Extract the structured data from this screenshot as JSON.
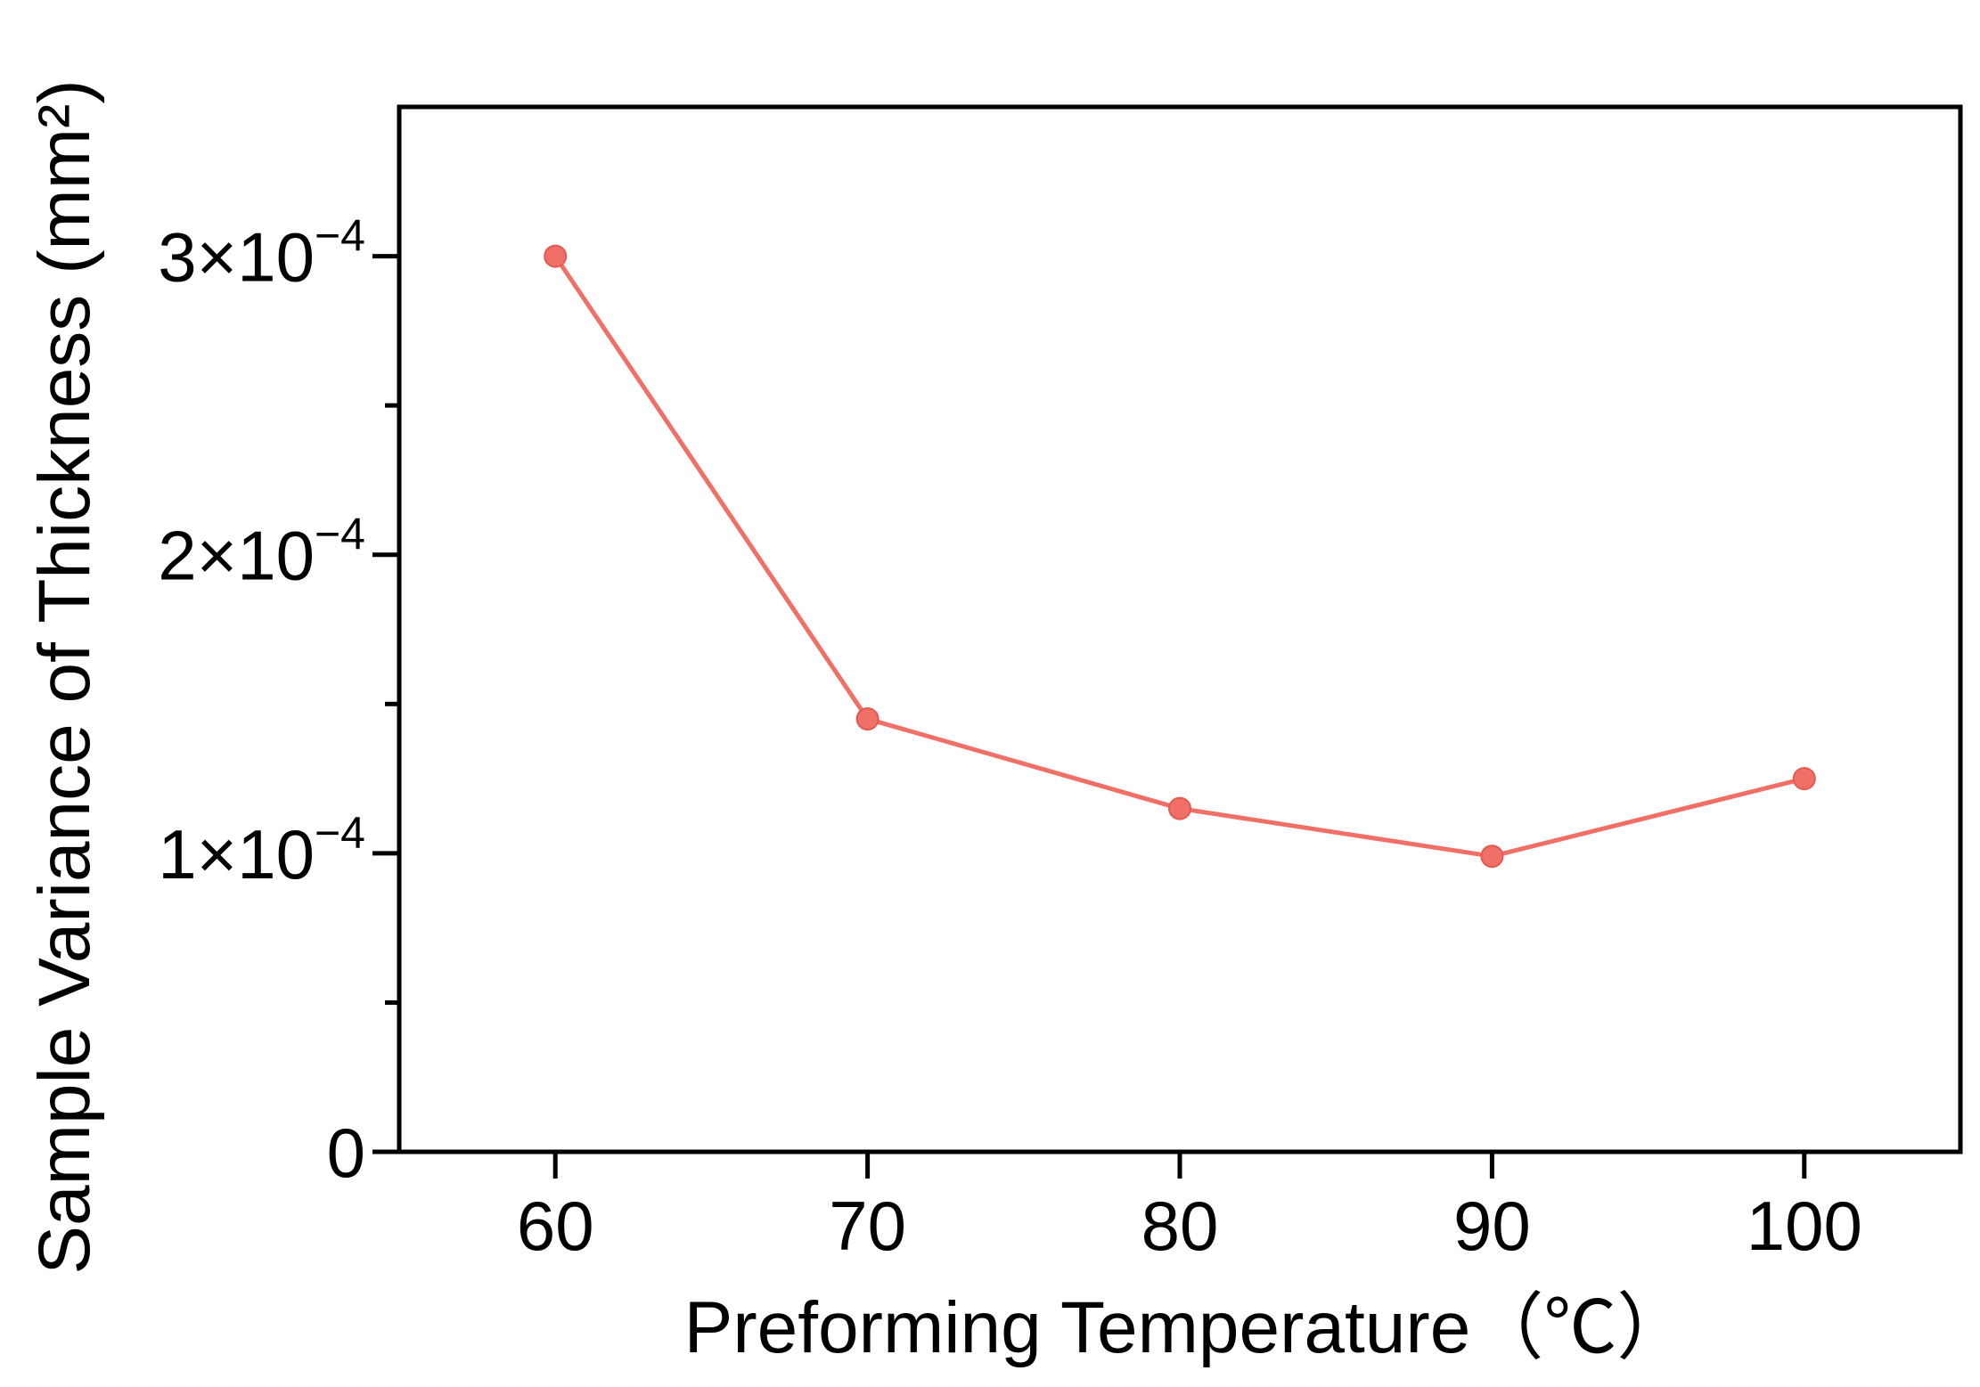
{
  "chart_data": {
    "type": "line",
    "xlabel": "Preforming Temperature（℃）",
    "ylabel": "Sample Variance of Thickness  (mm²)",
    "xlim": [
      55,
      105
    ],
    "ylim": [
      0,
      0.00035
    ],
    "x_ticks": [
      60,
      70,
      80,
      90,
      100
    ],
    "y_ticks": [
      {
        "value": 0,
        "mantissa": "0",
        "times": "",
        "exponent": ""
      },
      {
        "value": 0.0001,
        "mantissa": "1",
        "times": "×10",
        "exponent": "−4"
      },
      {
        "value": 0.0002,
        "mantissa": "2",
        "times": "×10",
        "exponent": "−4"
      },
      {
        "value": 0.0003,
        "mantissa": "3",
        "times": "×10",
        "exponent": "−4"
      }
    ],
    "y_minor_ticks": [
      5e-05,
      0.00015,
      0.00025
    ],
    "grid": false,
    "series": [
      {
        "x": [
          60,
          70,
          80,
          90,
          100
        ],
        "values": [
          0.0003,
          0.000145,
          0.000115,
          9.9e-05,
          0.000125
        ],
        "color": "#f07068"
      }
    ]
  }
}
